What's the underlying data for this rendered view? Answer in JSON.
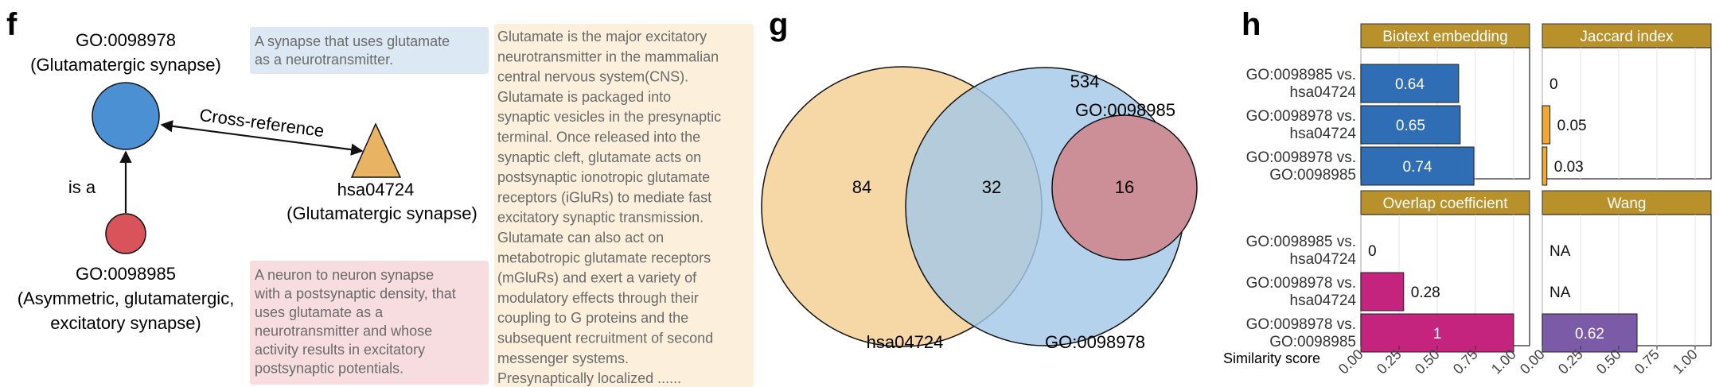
{
  "panel_f": {
    "letter": "f",
    "go_parent": {
      "id": "GO:0098978",
      "name": "(Glutamatergic synapse)",
      "color": "#4a90d2"
    },
    "go_child": {
      "id": "GO:0098985",
      "name_lines": [
        "(Asymmetric, glutamatergic,",
        "excitatory synapse)"
      ],
      "color": "#d9545a"
    },
    "kegg": {
      "id": "hsa04724",
      "name": "(Glutamatergic synapse)",
      "color": "#e8b464"
    },
    "edge_is_a": "is a",
    "edge_xref": "Cross-reference",
    "def_parent": [
      "A synapse that uses glutamate",
      "as a neurotransmitter."
    ],
    "def_child": [
      "A neuron to neuron synapse",
      "with a postsynaptic density, that",
      "uses glutamate as a",
      "neurotransmitter and whose",
      "activity results in excitatory",
      "postsynaptic potentials."
    ],
    "def_kegg": [
      "Glutamate is the major excitatory",
      "neurotransmitter in the mammalian",
      "central nervous system(CNS).",
      "Glutamate is packaged into",
      "synaptic vesicles in the presynaptic",
      "terminal. Once released into the",
      "synaptic cleft, glutamate acts on",
      "postsynaptic ionotropic glutamate",
      "receptors (iGluRs) to mediate fast",
      "excitatory synaptic transmission.",
      "Glutamate can also act on",
      "metabotropic glutamate receptors",
      "(mGluRs) and exert a variety of",
      "modulatory effects through their",
      "coupling to G proteins and the",
      "subsequent recruitment of second",
      "messenger systems.",
      "Presynaptically localized ......"
    ],
    "box_colors": {
      "parent": "#dce9f5",
      "child": "#f7dde0",
      "kegg": "#fcf0dc"
    }
  },
  "panel_g": {
    "letter": "g",
    "left_label": "hsa04724",
    "right_label": "GO:0098978",
    "inner_label": "GO:0098985",
    "left_only": "84",
    "overlap": "32",
    "inner_only": "16",
    "right_only": "534",
    "colors": {
      "left": "#f6d8a6",
      "right": "#a4c8e6",
      "inner": "#cc8e97"
    }
  },
  "chart_data": {
    "type": "bar",
    "orientation": "horizontal",
    "letter": "h",
    "xlabel": "Similarity score",
    "xlim": [
      0,
      1
    ],
    "xticks": [
      "0.00",
      "0.25",
      "0.50",
      "0.75",
      "1.00"
    ],
    "categories": [
      [
        "GO:0098985 vs.",
        "hsa04724"
      ],
      [
        "GO:0098978 vs.",
        "hsa04724"
      ],
      [
        "GO:0098978 vs.",
        "GO:0098985"
      ]
    ],
    "strip_color": "#b8912a",
    "facets": [
      {
        "title": "Biotext embedding",
        "color": "#2f6db5",
        "values": [
          0.64,
          0.65,
          0.74
        ],
        "labels": [
          "0.64",
          "0.65",
          "0.74"
        ]
      },
      {
        "title": "Jaccard index",
        "color": "#f0a832",
        "values": [
          0,
          0.05,
          0.03
        ],
        "labels": [
          "0",
          "0.05",
          "0.03"
        ]
      },
      {
        "title": "Overlap coefficient",
        "color": "#c4237e",
        "values": [
          0,
          0.28,
          1
        ],
        "labels": [
          "0",
          "0.28",
          "1"
        ]
      },
      {
        "title": "Wang",
        "color": "#7b5ba8",
        "values": [
          null,
          null,
          0.62
        ],
        "labels": [
          "NA",
          "NA",
          "0.62"
        ]
      }
    ]
  }
}
